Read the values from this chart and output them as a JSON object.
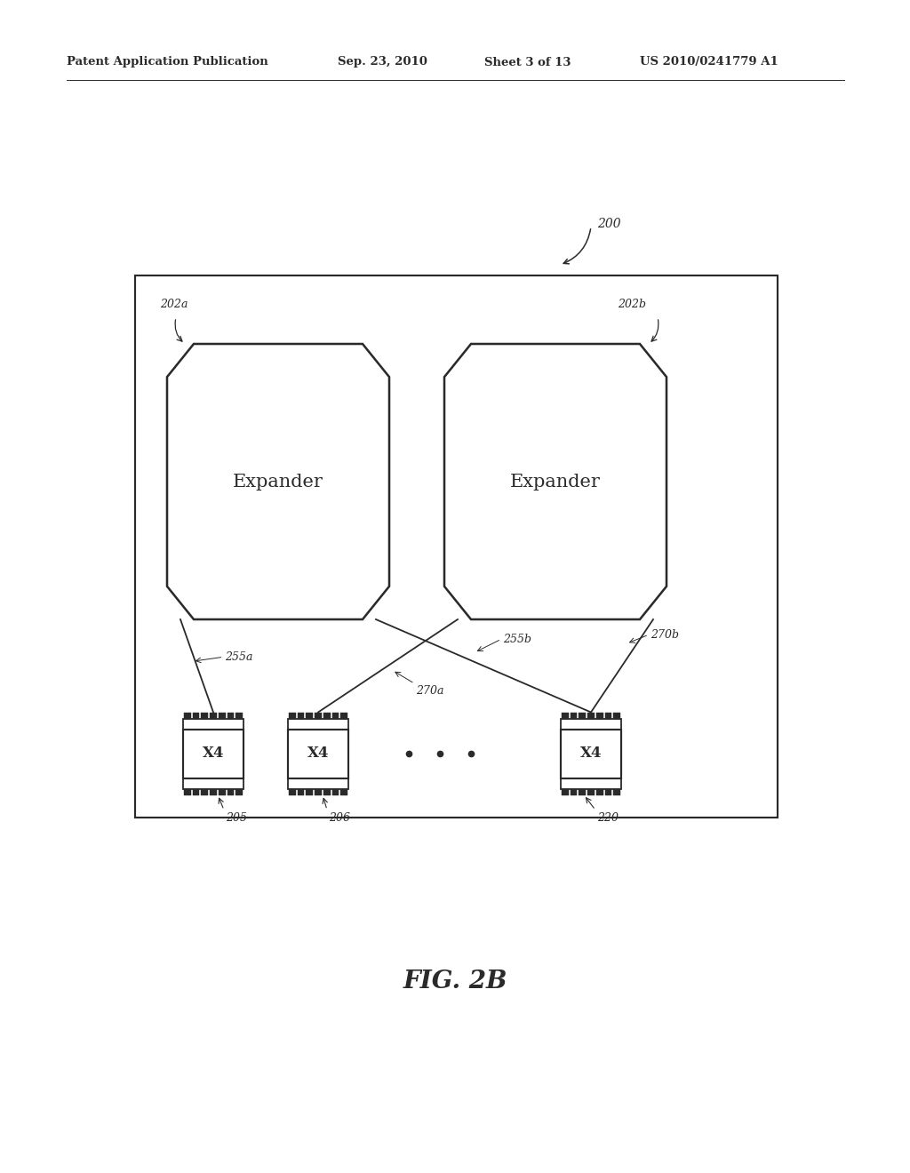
{
  "bg_color": "#ffffff",
  "header_text": "Patent Application Publication",
  "header_date": "Sep. 23, 2010",
  "header_sheet": "Sheet 3 of 13",
  "header_patent": "US 2010/0241779 A1",
  "fig_label": "FIG. 2B",
  "label_200": "200",
  "label_202a": "202a",
  "label_202b": "202b",
  "label_255a": "255a",
  "label_255b": "255b",
  "label_270a": "270a",
  "label_270b": "270b",
  "label_205": "205",
  "label_206": "206",
  "label_220": "220",
  "expander_text": "Expander",
  "x4_text": "X4",
  "line_color": "#2a2a2a",
  "line_width": 1.3
}
